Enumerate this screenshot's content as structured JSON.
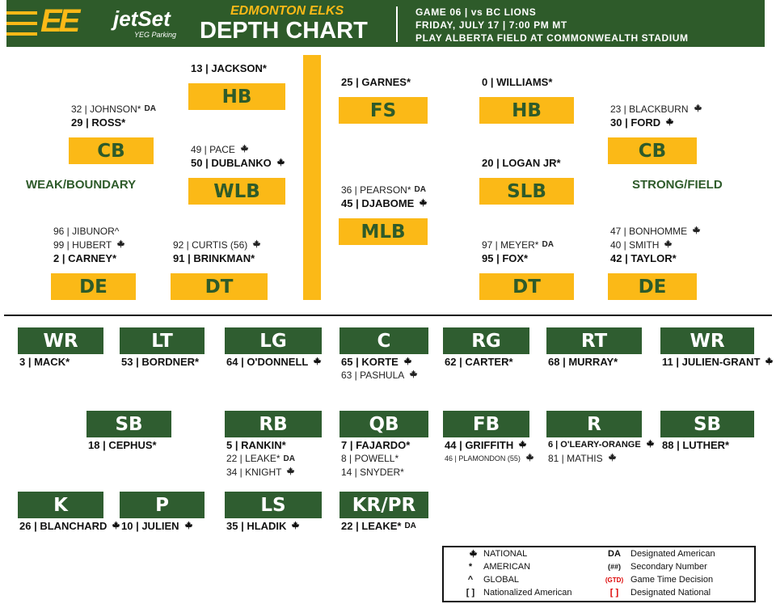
{
  "header": {
    "brand": "jetSet",
    "brand_sub": "YEG Parking",
    "team": "EDMONTON ELKS",
    "title": "DEPTH CHART",
    "game": "GAME 06 | vs BC LIONS",
    "date": "FRIDAY, JULY 17 | 7:00 PM MT",
    "venue": "PLAY ALBERTA FIELD AT COMMONWEALTH STADIUM"
  },
  "defense": {
    "sides": [
      "WEAK/BOUNDARY",
      "STRONG/FIELD"
    ],
    "positions": [
      {
        "label": "HB",
        "players": [
          {
            "name": "13 | JACKSON*"
          }
        ]
      },
      {
        "label": "CB",
        "players": [
          {
            "name": "32 | JOHNSON*",
            "tag": "DA"
          },
          {
            "name": "29 | ROSS*"
          }
        ]
      },
      {
        "label": "WLB",
        "players": [
          {
            "name": "49 | PACE",
            "national": true
          },
          {
            "name": "50 | DUBLANKO",
            "national": true
          }
        ]
      },
      {
        "label": "DE",
        "players": [
          {
            "name": "96 | JIBUNOR^"
          },
          {
            "name": "99 | HUBERT",
            "national": true
          },
          {
            "name": "2 | CARNEY*"
          }
        ]
      },
      {
        "label": "DT",
        "players": [
          {
            "name": "92 | CURTIS (56)",
            "national": true
          },
          {
            "name": "91 | BRINKMAN*"
          }
        ]
      },
      {
        "label": "FS",
        "players": [
          {
            "name": "25 | GARNES*"
          }
        ]
      },
      {
        "label": "MLB",
        "players": [
          {
            "name": "36 | PEARSON*",
            "tag": "DA"
          },
          {
            "name": "45 | DJABOME",
            "national": true
          }
        ]
      },
      {
        "label": "HB",
        "players": [
          {
            "name": "0 | WILLIAMS*"
          }
        ]
      },
      {
        "label": "SLB",
        "players": [
          {
            "name": "20 | LOGAN JR*"
          }
        ]
      },
      {
        "label": "DT",
        "players": [
          {
            "name": "97 | MEYER*",
            "tag": "DA"
          },
          {
            "name": "95 | FOX*"
          }
        ]
      },
      {
        "label": "CB",
        "players": [
          {
            "name": "23 | BLACKBURN",
            "national": true
          },
          {
            "name": "30 | FORD",
            "national": true
          }
        ]
      },
      {
        "label": "DE",
        "players": [
          {
            "name": "47 | BONHOMME",
            "national": true
          },
          {
            "name": "40 | SMITH",
            "national": true
          },
          {
            "name": "42 | TAYLOR*"
          }
        ]
      }
    ]
  },
  "offense": {
    "positions": [
      {
        "label": "WR",
        "players": [
          {
            "name": "3 | MACK*"
          }
        ]
      },
      {
        "label": "LT",
        "players": [
          {
            "name": "53 | BORDNER*"
          }
        ]
      },
      {
        "label": "LG",
        "players": [
          {
            "name": "64 | O'DONNELL",
            "national": true
          }
        ]
      },
      {
        "label": "C",
        "players": [
          {
            "name": "65 | KORTE",
            "national": true
          },
          {
            "name": "63 | PASHULA",
            "national": true
          }
        ]
      },
      {
        "label": "RG",
        "players": [
          {
            "name": "62 | CARTER*"
          }
        ]
      },
      {
        "label": "RT",
        "players": [
          {
            "name": "68 | MURRAY*"
          }
        ]
      },
      {
        "label": "WR",
        "players": [
          {
            "name": "11 | JULIEN-GRANT",
            "national": true
          }
        ]
      },
      {
        "label": "SB",
        "players": [
          {
            "name": "18 | CEPHUS*"
          }
        ]
      },
      {
        "label": "RB",
        "players": [
          {
            "name": "5 | RANKIN*"
          },
          {
            "name": "22 | LEAKE*",
            "tag": "DA"
          },
          {
            "name": "34 | KNIGHT",
            "national": true
          }
        ]
      },
      {
        "label": "QB",
        "players": [
          {
            "name": "7 | FAJARDO*"
          },
          {
            "name": "8 | POWELL*"
          },
          {
            "name": "14 | SNYDER*"
          }
        ]
      },
      {
        "label": "FB",
        "players": [
          {
            "name": "44 | GRIFFITH",
            "national": true
          },
          {
            "name": "46 | PLAMONDON (55)",
            "national": true
          }
        ]
      },
      {
        "label": "R",
        "players": [
          {
            "name": "6 | O'LEARY-ORANGE",
            "national": true
          },
          {
            "name": "81 | MATHIS",
            "national": true
          }
        ]
      },
      {
        "label": "SB",
        "players": [
          {
            "name": "88 | LUTHER*"
          }
        ]
      },
      {
        "label": "K",
        "players": [
          {
            "name": "26 | BLANCHARD",
            "national": true
          }
        ]
      },
      {
        "label": "P",
        "players": [
          {
            "name": "10 | JULIEN",
            "national": true
          }
        ]
      },
      {
        "label": "LS",
        "players": [
          {
            "name": "35 | HLADIK",
            "national": true
          }
        ]
      },
      {
        "label": "KR/PR",
        "players": [
          {
            "name": "22 | LEAKE*",
            "tag": "DA"
          }
        ]
      }
    ]
  },
  "legend": {
    "left": [
      {
        "symbol": null,
        "label": "NATIONAL"
      },
      {
        "symbol": "*",
        "label": "AMERICAN"
      },
      {
        "symbol": "^",
        "label": "GLOBAL"
      },
      {
        "symbol": "[ ]",
        "label": "Nationalized American"
      }
    ],
    "right": [
      {
        "symbol": "DA",
        "label": "Designated American"
      },
      {
        "symbol": "(##)",
        "label": "Secondary Number"
      },
      {
        "symbol": "(GTD)",
        "label": "Game Time Decision"
      },
      {
        "symbol": "[ ]",
        "label": "Designated National"
      }
    ]
  }
}
